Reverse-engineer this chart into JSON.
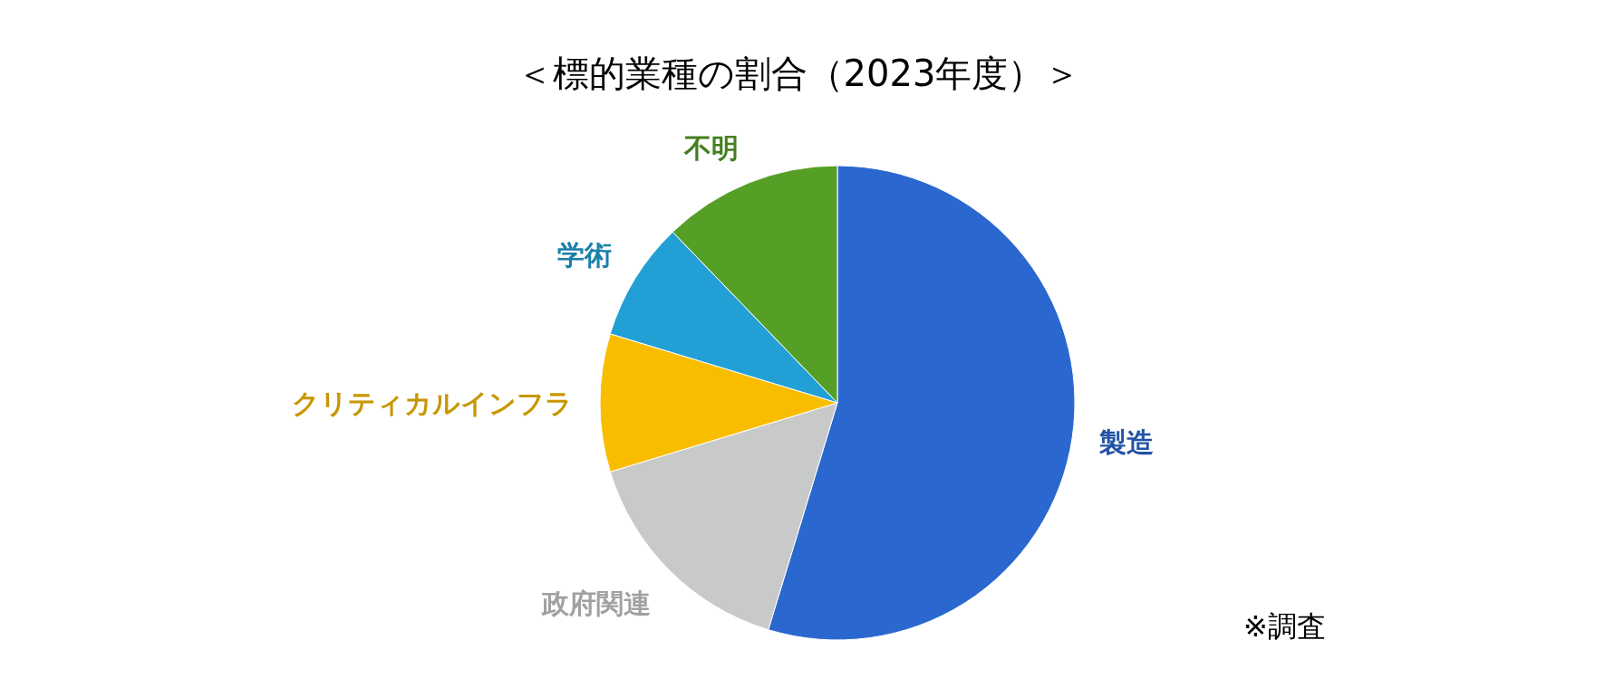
{
  "chart_data": {
    "type": "pie",
    "title": "＜標的業種の割合（2023年度）＞",
    "categories": [
      "製造",
      "政府関連",
      "クリティカルインフラ",
      "学術",
      "不明"
    ],
    "values": [
      54.7,
      15.6,
      9.4,
      8.1,
      12.2
    ],
    "colors": [
      "#2a68d0",
      "#c8c9c9",
      "#f9bd00",
      "#229fd5",
      "#559f26"
    ],
    "annotations": [
      "※調査"
    ]
  }
}
